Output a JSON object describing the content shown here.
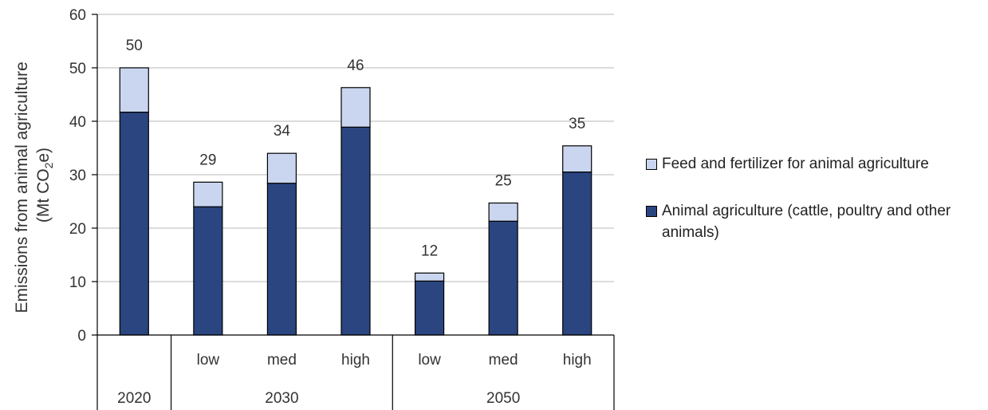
{
  "colors": {
    "feed": "#cad6ef",
    "animal": "#2b4580",
    "grid": "#c8c8c8",
    "axis": "#000000"
  },
  "chart_data": {
    "type": "bar",
    "stacked": true,
    "ylabel_line1": "Emissions from animal agriculture",
    "ylabel_line2_prefix": "(Mt CO",
    "ylabel_line2_sub": "2",
    "ylabel_line2_suffix": "e)",
    "ylim": [
      0,
      60
    ],
    "yticks": [
      "0",
      "10",
      "20",
      "30",
      "40",
      "50",
      "60"
    ],
    "grid": true,
    "legend_position": "right",
    "groups": [
      {
        "label": "2020",
        "categories": [
          ""
        ]
      },
      {
        "label": "2030",
        "categories": [
          "low",
          "med",
          "high"
        ]
      },
      {
        "label": "2050",
        "categories": [
          "low",
          "med",
          "high"
        ]
      }
    ],
    "series": [
      {
        "name": "Animal agriculture (cattle, poultry and other animals)",
        "values": [
          41.7,
          24.0,
          28.4,
          38.9,
          10.1,
          21.3,
          30.5
        ]
      },
      {
        "name": "Feed and fertilizer for animal agriculture",
        "values": [
          8.3,
          4.6,
          5.6,
          7.4,
          1.5,
          3.4,
          4.9
        ]
      }
    ],
    "totals": [
      "50",
      "29",
      "34",
      "46",
      "12",
      "25",
      "35"
    ]
  },
  "legend": {
    "feed_label": "Feed and fertilizer for animal agriculture",
    "animal_label": "Animal agriculture (cattle, poultry and other animals)"
  }
}
